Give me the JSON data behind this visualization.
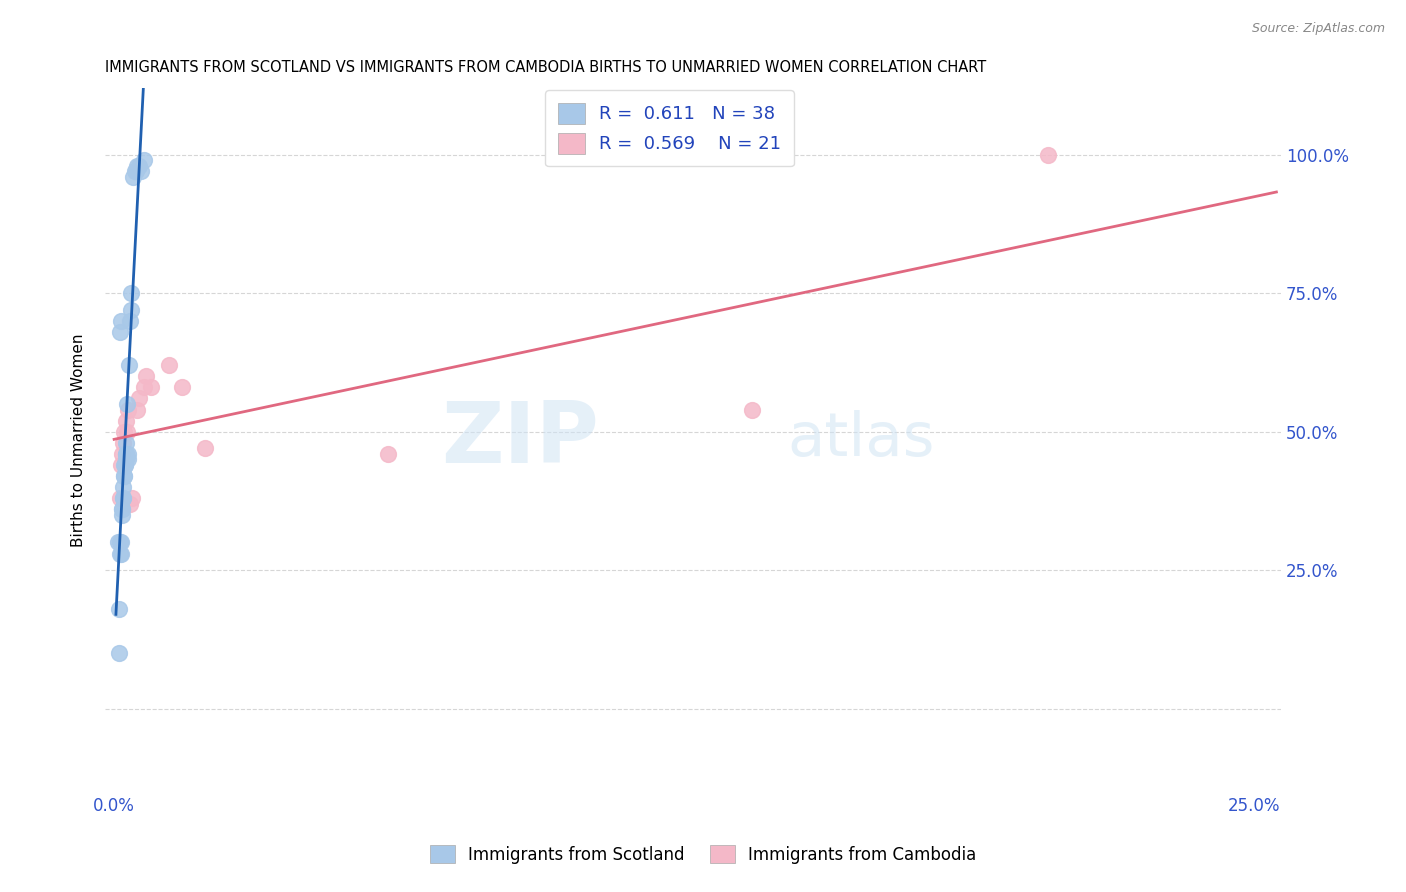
{
  "title": "IMMIGRANTS FROM SCOTLAND VS IMMIGRANTS FROM CAMBODIA BIRTHS TO UNMARRIED WOMEN CORRELATION CHART",
  "source": "Source: ZipAtlas.com",
  "ylabel": "Births to Unmarried Women",
  "xlabel_scotland": "Immigrants from Scotland",
  "xlabel_cambodia": "Immigrants from Cambodia",
  "xlim": [
    -0.002,
    0.256
  ],
  "ylim": [
    -0.15,
    1.12
  ],
  "xtick_positions": [
    0.0,
    0.05,
    0.1,
    0.15,
    0.2,
    0.25
  ],
  "xtick_labels": [
    "0.0%",
    "",
    "",
    "",
    "",
    "25.0%"
  ],
  "ytick_positions": [
    0.0,
    0.25,
    0.5,
    0.75,
    1.0
  ],
  "ytick_labels_right": [
    "",
    "25.0%",
    "50.0%",
    "75.0%",
    "100.0%"
  ],
  "scotland_color": "#a8c8e8",
  "cambodia_color": "#f4b8c8",
  "scotland_line_color": "#2060b0",
  "cambodia_line_color": "#e06880",
  "R_scotland": 0.611,
  "N_scotland": 38,
  "R_cambodia": 0.569,
  "N_cambodia": 21,
  "watermark_zip": "ZIP",
  "watermark_atlas": "atlas",
  "scotland_x": [
    0.0008,
    0.001,
    0.0012,
    0.0012,
    0.0014,
    0.0015,
    0.0016,
    0.0016,
    0.0017,
    0.0018,
    0.0018,
    0.0019,
    0.002,
    0.002,
    0.0021,
    0.0022,
    0.0022,
    0.0023,
    0.0024,
    0.0025,
    0.0025,
    0.0026,
    0.0027,
    0.0028,
    0.003,
    0.003,
    0.0032,
    0.0035,
    0.0038,
    0.0038,
    0.0042,
    0.0045,
    0.0048,
    0.005,
    0.0055,
    0.006,
    0.0065,
    0.001
  ],
  "scotland_y": [
    0.3,
    0.1,
    0.28,
    0.3,
    0.68,
    0.7,
    0.28,
    0.3,
    0.36,
    0.35,
    0.36,
    0.38,
    0.38,
    0.4,
    0.42,
    0.42,
    0.44,
    0.44,
    0.44,
    0.45,
    0.46,
    0.46,
    0.48,
    0.55,
    0.45,
    0.46,
    0.62,
    0.7,
    0.72,
    0.75,
    0.96,
    0.97,
    0.97,
    0.98,
    0.98,
    0.97,
    0.99,
    0.18
  ],
  "cambodia_x": [
    0.0012,
    0.0015,
    0.0018,
    0.002,
    0.0022,
    0.0025,
    0.0028,
    0.003,
    0.0035,
    0.004,
    0.005,
    0.0055,
    0.0065,
    0.007,
    0.008,
    0.012,
    0.015,
    0.02,
    0.06,
    0.14,
    0.205
  ],
  "cambodia_y": [
    0.38,
    0.44,
    0.46,
    0.48,
    0.5,
    0.52,
    0.5,
    0.54,
    0.37,
    0.38,
    0.54,
    0.56,
    0.58,
    0.6,
    0.58,
    0.62,
    0.58,
    0.47,
    0.46,
    0.54,
    1.0
  ],
  "scotland_line_x": [
    0.0008,
    0.0065
  ],
  "cambodia_line_x": [
    0.0,
    0.25
  ]
}
